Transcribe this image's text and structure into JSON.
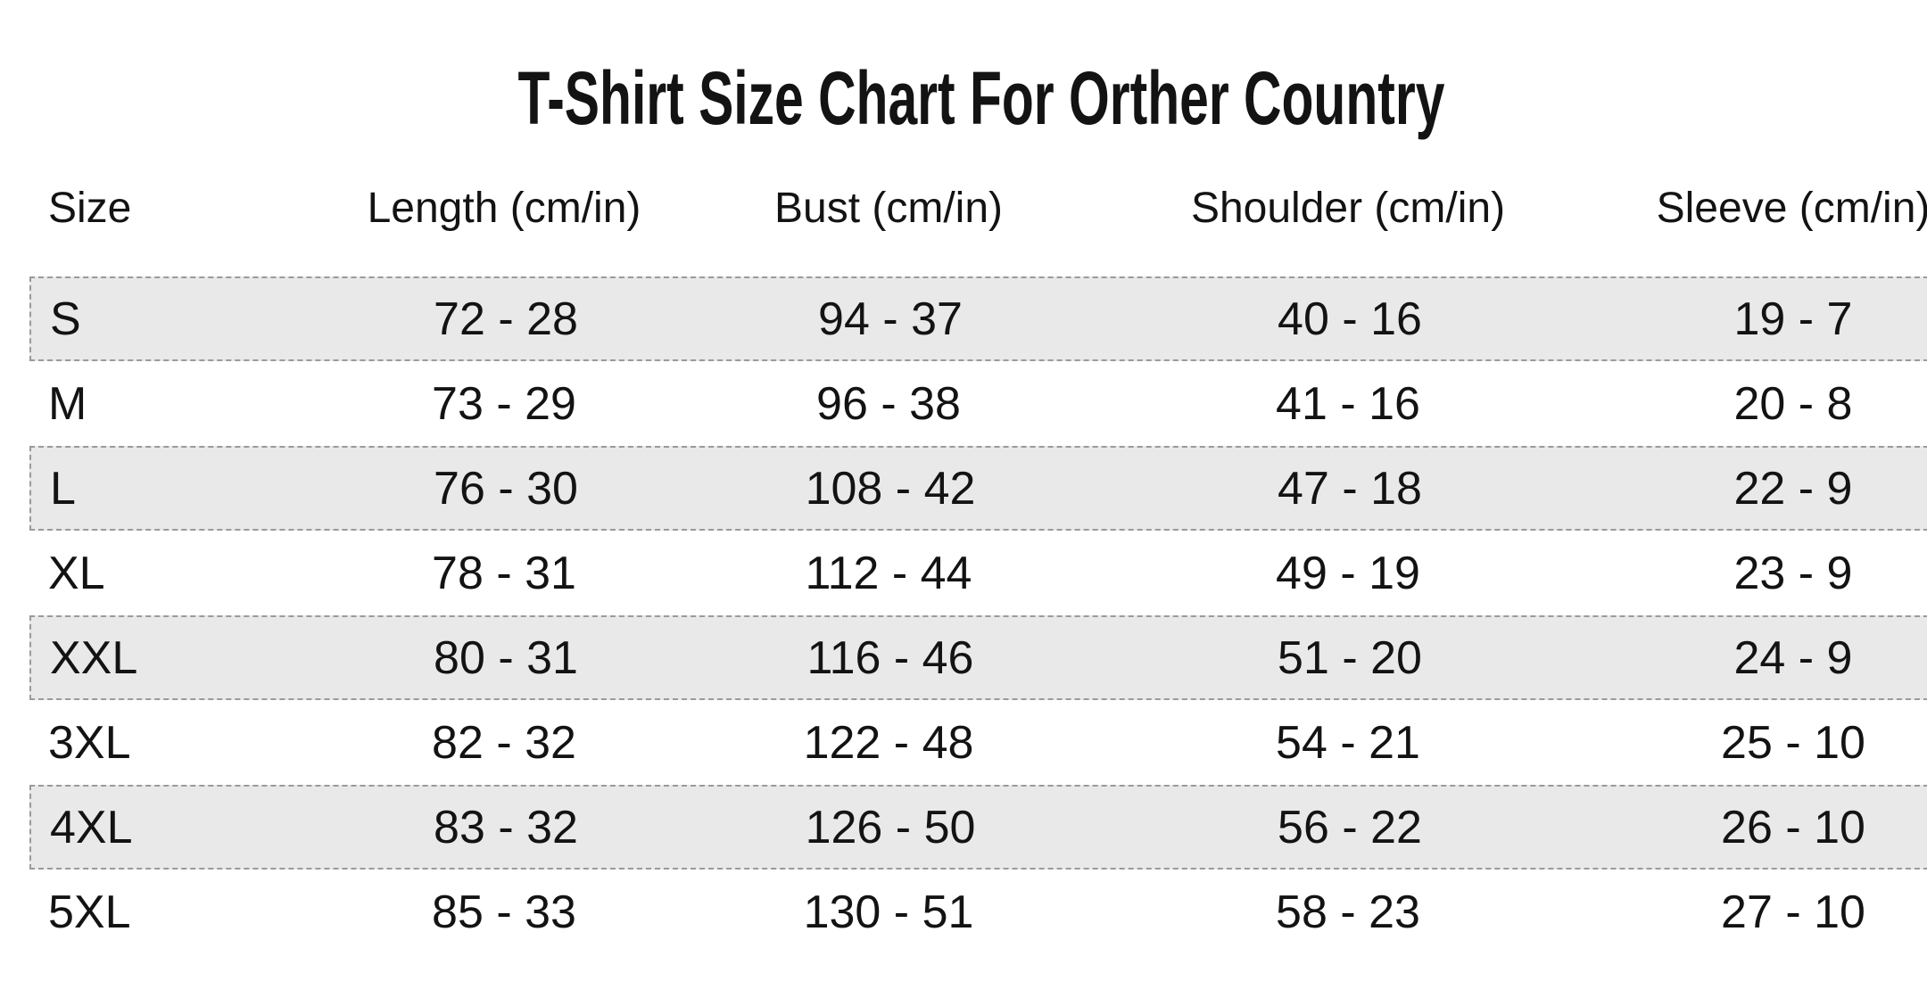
{
  "chart_data": {
    "type": "table",
    "title": "T-Shirt Size Chart For Orther Country",
    "columns": [
      "Size",
      "Length (cm/in)",
      "Bust (cm/in)",
      "Shoulder (cm/in)",
      "Sleeve (cm/in)"
    ],
    "rows": [
      [
        "S",
        "72 - 28",
        "94 - 37",
        "40 - 16",
        "19 - 7"
      ],
      [
        "M",
        "73 - 29",
        "96 - 38",
        "41 - 16",
        "20 - 8"
      ],
      [
        "L",
        "76 - 30",
        "108 - 42",
        "47 - 18",
        "22 - 9"
      ],
      [
        "XL",
        "78 - 31",
        "112 - 44",
        "49 - 19",
        "23 - 9"
      ],
      [
        "XXL",
        "80 - 31",
        "116 - 46",
        "51 - 20",
        "24 - 9"
      ],
      [
        "3XL",
        "82 - 32",
        "122 - 48",
        "54 - 21",
        "25 - 10"
      ],
      [
        "4XL",
        "83 - 32",
        "126 - 50",
        "56 - 22",
        "26 - 10"
      ],
      [
        "5XL",
        "85 - 33",
        "130 - 51",
        "58 - 23",
        "27 - 10"
      ]
    ],
    "striped_rows": [
      "S",
      "L",
      "XXL",
      "4XL"
    ],
    "layout_hints": {
      "stripe_style": "dashed-border-band",
      "rows_cut_off_right_edge": true
    }
  },
  "colors": {
    "background": "#ffffff",
    "text": "#131313",
    "stripe_background": "#e9e9ea",
    "stripe_border": "#9a9a9a"
  }
}
